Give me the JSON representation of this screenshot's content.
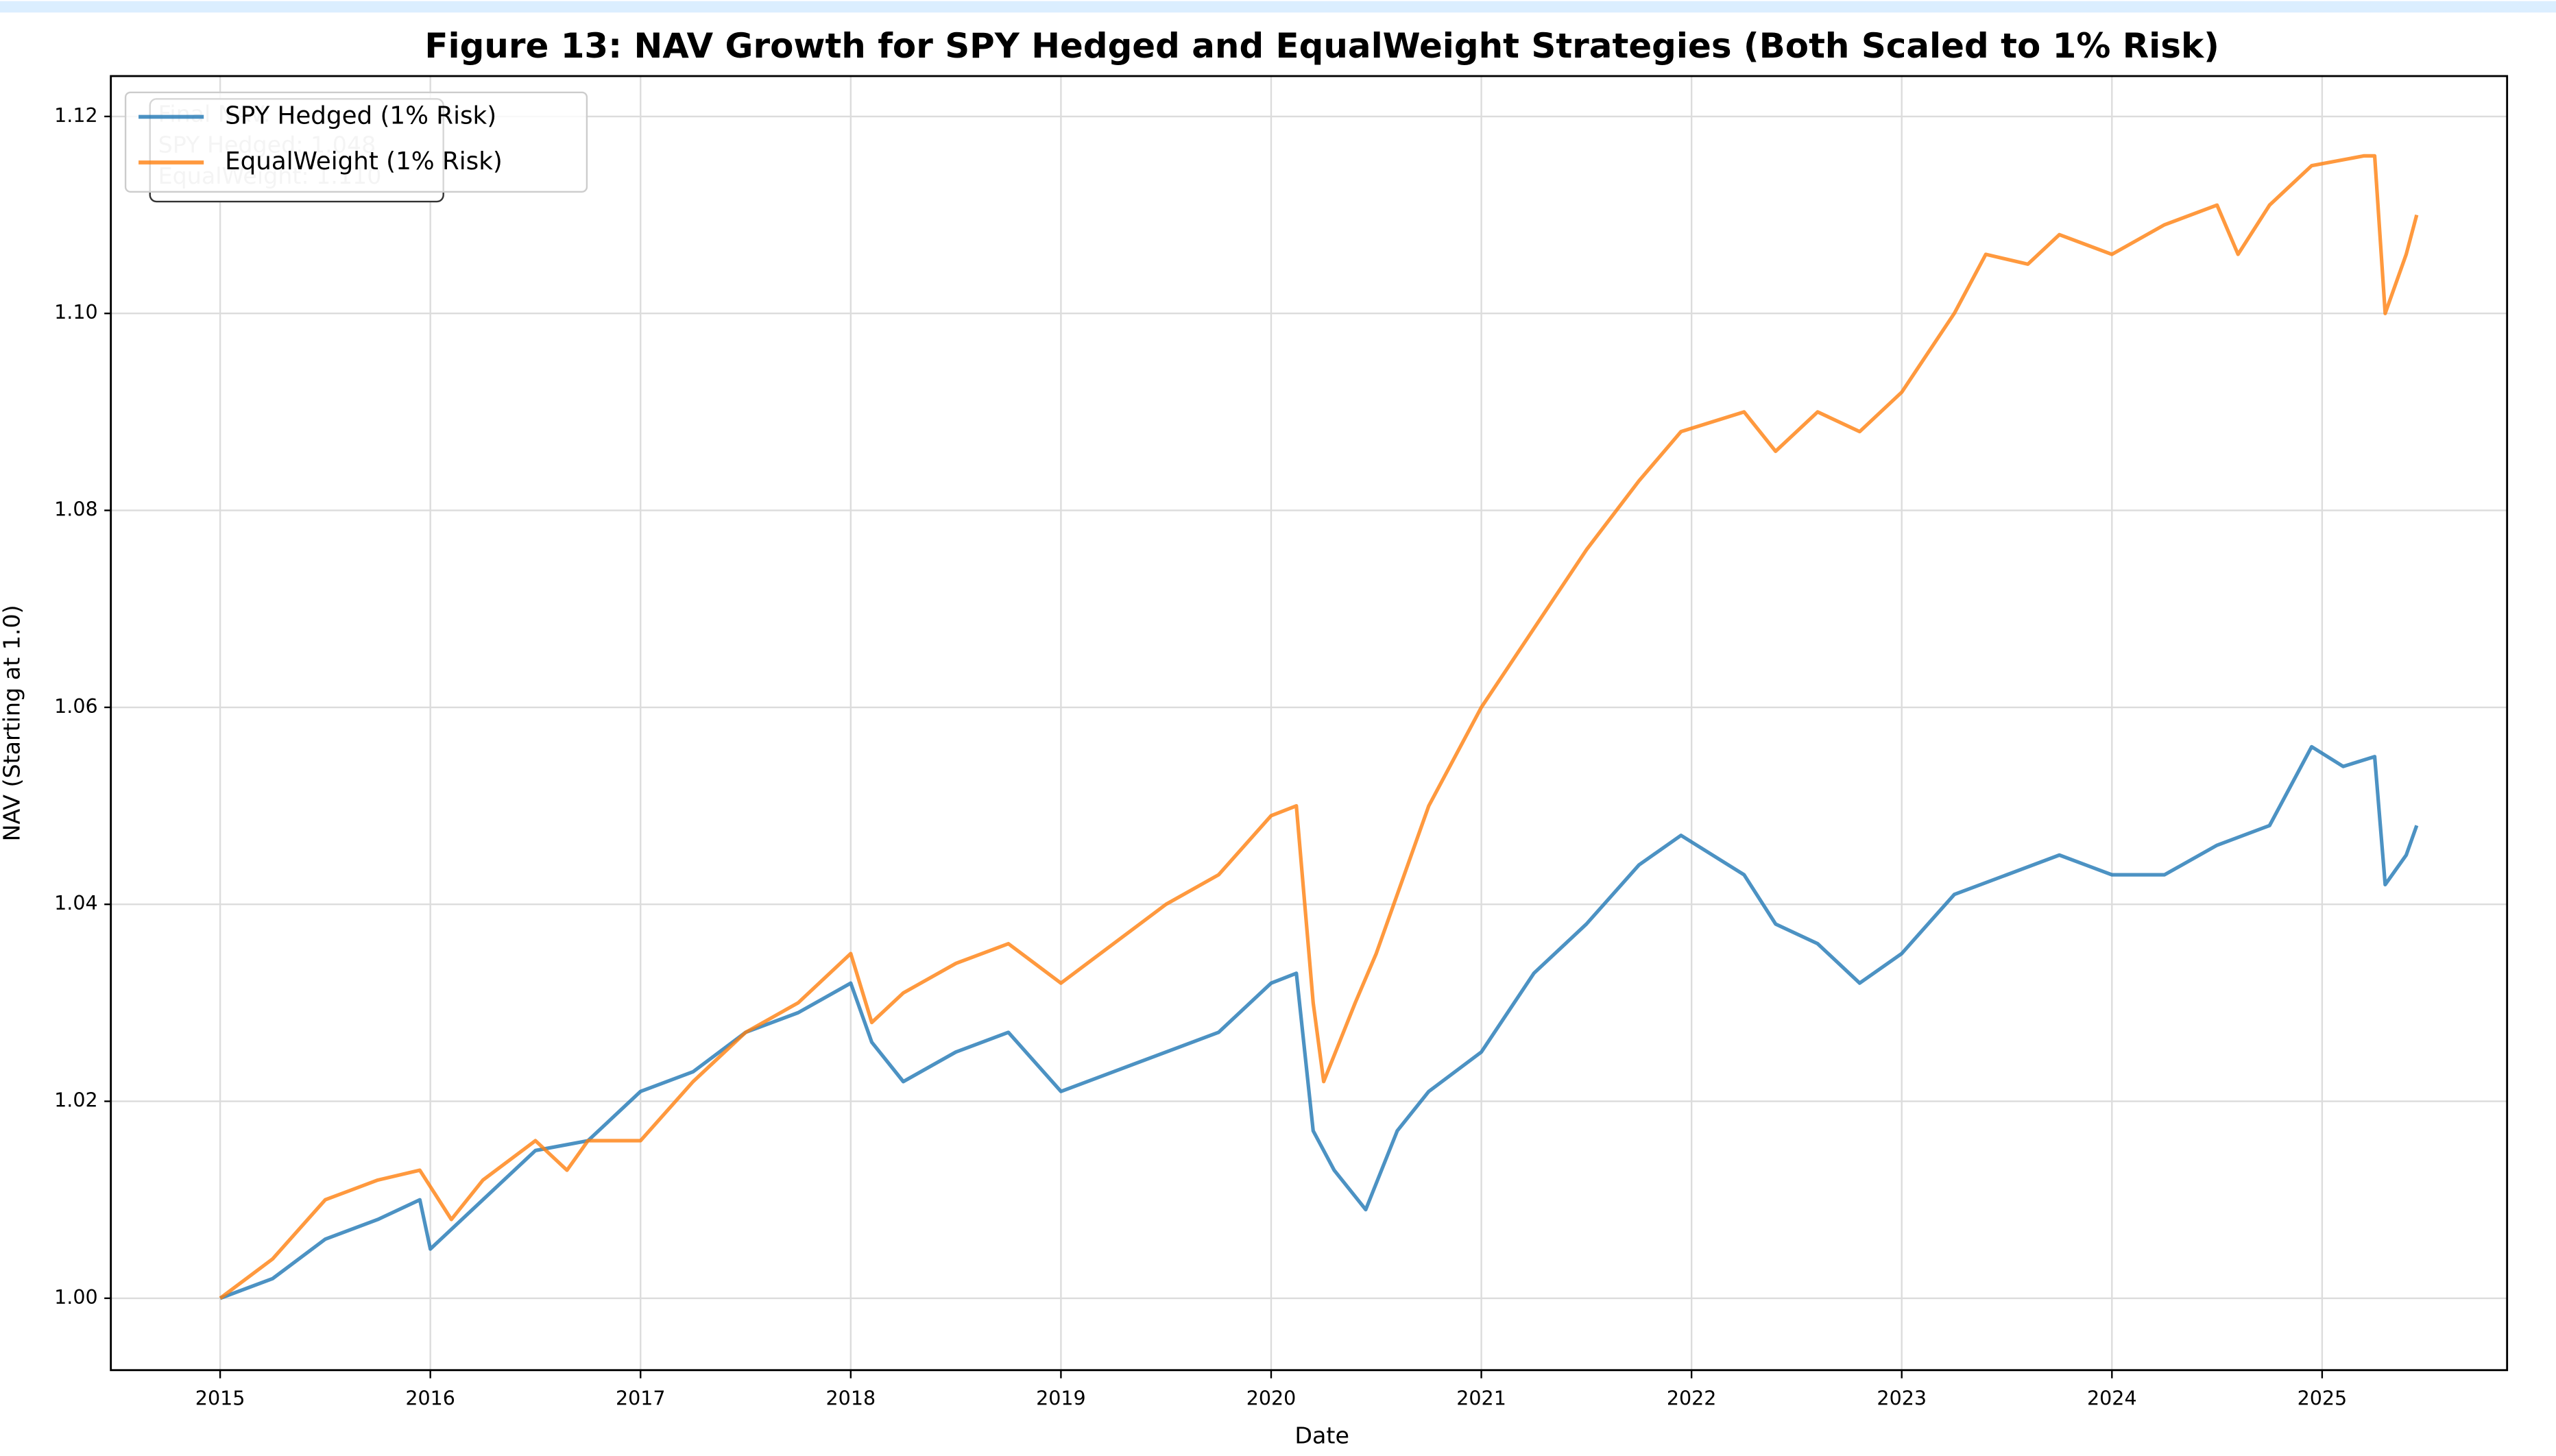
{
  "chart_data": {
    "type": "line",
    "title": "Figure 13: NAV Growth for SPY Hedged and EqualWeight Strategies (Both Scaled to 1% Risk)",
    "x_label": "Date",
    "y_label": "NAV (Starting at 1.0)",
    "xlim": [
      2014.48,
      2025.88
    ],
    "xticks": [
      2015,
      2016,
      2017,
      2018,
      2019,
      2020,
      2021,
      2022,
      2023,
      2024,
      2025
    ],
    "ylim": [
      0.9927,
      1.1241
    ],
    "yticks": [
      {
        "value": 1.0,
        "label": "1.00"
      },
      {
        "value": 1.02,
        "label": "1.02"
      },
      {
        "value": 1.04,
        "label": "1.04"
      },
      {
        "value": 1.06,
        "label": "1.06"
      },
      {
        "value": 1.08,
        "label": "1.08"
      },
      {
        "value": 1.1,
        "label": "1.10"
      },
      {
        "value": 1.12,
        "label": "1.12"
      }
    ],
    "grid": true,
    "legend": "upper left",
    "annotation": [
      "Final NAV:",
      "SPY Hedged: 1.048",
      "EqualWeight: 1.110"
    ],
    "series": [
      {
        "name": "SPY Hedged (1% Risk)",
        "color": "#1f77b4",
        "x": [
          2015.0,
          2015.25,
          2015.5,
          2015.75,
          2015.95,
          2016.0,
          2016.25,
          2016.5,
          2016.75,
          2017.0,
          2017.25,
          2017.5,
          2017.75,
          2018.0,
          2018.1,
          2018.25,
          2018.5,
          2018.75,
          2019.0,
          2019.25,
          2019.5,
          2019.75,
          2020.0,
          2020.12,
          2020.2,
          2020.3,
          2020.45,
          2020.6,
          2020.75,
          2021.0,
          2021.25,
          2021.5,
          2021.75,
          2021.95,
          2022.25,
          2022.4,
          2022.6,
          2022.8,
          2023.0,
          2023.25,
          2023.5,
          2023.75,
          2024.0,
          2024.25,
          2024.5,
          2024.75,
          2024.95,
          2025.1,
          2025.25,
          2025.3,
          2025.4,
          2025.45
        ],
        "values": [
          1.0,
          1.002,
          1.006,
          1.008,
          1.01,
          1.005,
          1.01,
          1.015,
          1.016,
          1.021,
          1.023,
          1.027,
          1.029,
          1.032,
          1.026,
          1.022,
          1.025,
          1.027,
          1.021,
          1.023,
          1.025,
          1.027,
          1.032,
          1.033,
          1.017,
          1.013,
          1.009,
          1.017,
          1.021,
          1.025,
          1.033,
          1.038,
          1.044,
          1.047,
          1.043,
          1.038,
          1.036,
          1.032,
          1.035,
          1.041,
          1.043,
          1.045,
          1.043,
          1.043,
          1.046,
          1.048,
          1.056,
          1.054,
          1.055,
          1.042,
          1.045,
          1.048
        ]
      },
      {
        "name": "EqualWeight (1% Risk)",
        "color": "#ff7f0e",
        "x": [
          2015.0,
          2015.25,
          2015.5,
          2015.75,
          2015.95,
          2016.1,
          2016.25,
          2016.5,
          2016.65,
          2016.75,
          2017.0,
          2017.25,
          2017.5,
          2017.75,
          2018.0,
          2018.1,
          2018.25,
          2018.5,
          2018.75,
          2019.0,
          2019.25,
          2019.5,
          2019.75,
          2020.0,
          2020.12,
          2020.2,
          2020.25,
          2020.4,
          2020.5,
          2020.75,
          2021.0,
          2021.25,
          2021.5,
          2021.75,
          2021.95,
          2022.25,
          2022.4,
          2022.6,
          2022.8,
          2023.0,
          2023.25,
          2023.4,
          2023.6,
          2023.75,
          2024.0,
          2024.25,
          2024.5,
          2024.6,
          2024.75,
          2024.95,
          2025.2,
          2025.25,
          2025.3,
          2025.4,
          2025.45
        ],
        "values": [
          1.0,
          1.004,
          1.01,
          1.012,
          1.013,
          1.008,
          1.012,
          1.016,
          1.013,
          1.016,
          1.016,
          1.022,
          1.027,
          1.03,
          1.035,
          1.028,
          1.031,
          1.034,
          1.036,
          1.032,
          1.036,
          1.04,
          1.043,
          1.049,
          1.05,
          1.03,
          1.022,
          1.03,
          1.035,
          1.05,
          1.06,
          1.068,
          1.076,
          1.083,
          1.088,
          1.09,
          1.086,
          1.09,
          1.088,
          1.092,
          1.1,
          1.106,
          1.105,
          1.108,
          1.106,
          1.109,
          1.111,
          1.106,
          1.111,
          1.115,
          1.116,
          1.116,
          1.1,
          1.106,
          1.11
        ]
      }
    ]
  }
}
